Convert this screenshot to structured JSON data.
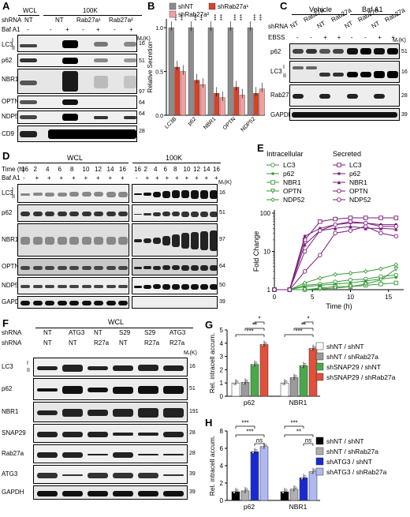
{
  "panels": {
    "A": "A",
    "B": "B",
    "C": "C",
    "D": "D",
    "E": "E",
    "F": "F",
    "G": "G",
    "H": "H"
  },
  "common": {
    "mk": "Mᵣ(K)",
    "I": "I",
    "II": "II",
    "minus": "-",
    "plus": "+"
  },
  "A": {
    "shrna_label": "shRNA",
    "bafa1_label": "Baf A1",
    "wcl": "WCL",
    "k100": "100K",
    "nt": "NT",
    "nt2": "NT",
    "rab27a1": "Rab27a¹",
    "rab27a2": "Rab27a²",
    "proteins": [
      "LC3",
      "p62",
      "NBR1",
      "OPTN",
      "NDP52",
      "CD9"
    ],
    "markers": [
      "16",
      "51",
      "97",
      "64",
      "64",
      "28"
    ],
    "bafa1": [
      "-",
      "-",
      "+",
      "-",
      "+",
      "-",
      "+"
    ]
  },
  "B": {
    "ylabel": "Relative Secretion",
    "yticks": [
      "0.0",
      "0.5",
      "1.0"
    ],
    "sig": "***",
    "legend": [
      "shNT",
      "shRab27a¹",
      "shRab27a²"
    ],
    "colors": [
      "#8c8c8c",
      "#d8402a",
      "#f0a0a0"
    ]
  },
  "C": {
    "vehicle": "Vehicle",
    "bafa1_title": "Baf A1",
    "shrna_label": "shRNA",
    "ebss_label": "EBSS",
    "shrna": [
      "NT",
      "Rab27a",
      "NT",
      "Rab27a",
      "NT",
      "Rab27a",
      "NT",
      "Rab27a"
    ],
    "ebss": [
      "-",
      "-",
      "+",
      "+",
      "-",
      "-",
      "+",
      "+"
    ],
    "proteins": [
      "p62",
      "LC3",
      "Rab27a",
      "GAPDH"
    ],
    "markers": [
      "51",
      "16",
      "28",
      "39"
    ]
  },
  "D": {
    "time_label": "Time (h)",
    "bafa1_label": "Baf A1",
    "wcl": "WCL",
    "k100": "100K",
    "times_wcl": [
      "16",
      "2",
      "4",
      "6",
      "8",
      "10",
      "12",
      "14",
      "16"
    ],
    "bafa1_wcl": [
      "-",
      "+",
      "+",
      "+",
      "+",
      "+",
      "+",
      "+",
      "+"
    ],
    "times_100k": [
      "16",
      "2",
      "4",
      "6",
      "8",
      "10",
      "12",
      "14",
      "16"
    ],
    "bafa1_100k": [
      "-",
      "+",
      "+",
      "+",
      "+",
      "+",
      "+",
      "+",
      "+"
    ],
    "proteins": [
      "LC3",
      "p62",
      "NBR1",
      "OPTN",
      "NDP52",
      "GAPDH"
    ],
    "markers": [
      "16",
      "51",
      "97",
      "64",
      "50",
      "39"
    ]
  },
  "chart_data": [
    {
      "panel": "B",
      "type": "bar",
      "categories": [
        "LC3B",
        "p62",
        "NBR1",
        "OPTN",
        "NDP52"
      ],
      "ylabel": "Relative Secretion",
      "ylim": [
        0,
        1.1
      ],
      "series": [
        {
          "name": "shNT",
          "values": [
            1.0,
            1.0,
            1.0,
            1.0,
            1.0
          ],
          "color": "#8c8c8c"
        },
        {
          "name": "shRab27a¹",
          "values": [
            0.55,
            0.4,
            0.25,
            0.32,
            0.25
          ],
          "color": "#d8402a"
        },
        {
          "name": "shRab27a²",
          "values": [
            0.5,
            0.35,
            0.2,
            0.23,
            0.3
          ],
          "color": "#f0a0a0"
        }
      ],
      "annotations": [
        "***",
        "***",
        "***",
        "***",
        "***",
        "***",
        "***",
        "***",
        "***",
        "***"
      ]
    },
    {
      "panel": "E",
      "type": "line",
      "xlabel": "Time (h)",
      "ylabel": "Fold Change",
      "xlim": [
        0,
        17
      ],
      "ylim": [
        1,
        100
      ],
      "yscale": "log",
      "xticks": [
        0,
        5,
        10,
        15
      ],
      "yticks": [
        "1",
        "10",
        "100"
      ],
      "x": [
        2,
        4,
        6,
        8,
        10,
        12,
        14,
        16
      ],
      "legend_title_left": "Intracellular",
      "legend_title_right": "Secreted",
      "series": [
        {
          "name": "LC3",
          "group": "Intracellular",
          "color": "#3a9a3a",
          "marker": "circle",
          "values": [
            1,
            1.3,
            1.4,
            1.6,
            1.8,
            1.9,
            2.2,
            2.4
          ]
        },
        {
          "name": "p62",
          "group": "Intracellular",
          "color": "#3a9a3a",
          "marker": "dot",
          "values": [
            1,
            1.2,
            1.3,
            1.4,
            1.5,
            1.7,
            1.9,
            2.1
          ]
        },
        {
          "name": "NBR1",
          "group": "Intracellular",
          "color": "#3a9a3a",
          "marker": "square",
          "values": [
            1,
            1.0,
            1.1,
            1.2,
            1.2,
            1.3,
            1.4,
            1.5
          ]
        },
        {
          "name": "OPTN",
          "group": "Intracellular",
          "color": "#3a9a3a",
          "marker": "triangle-down",
          "values": [
            1,
            1.0,
            1.05,
            1.1,
            1.2,
            1.4,
            1.8,
            3.5
          ]
        },
        {
          "name": "NDP52",
          "group": "Intracellular",
          "color": "#3a9a3a",
          "marker": "diamond",
          "values": [
            1,
            1.5,
            2.0,
            2.5,
            2.7,
            3.0,
            3.5,
            4.5
          ]
        },
        {
          "name": "LC3",
          "group": "Secreted",
          "color": "#7a1a7a",
          "marker": "square",
          "values": [
            1,
            20,
            60,
            70,
            75,
            75,
            75,
            75
          ]
        },
        {
          "name": "p62",
          "group": "Secreted",
          "color": "#7a1a7a",
          "marker": "dot",
          "values": [
            1,
            25,
            40,
            50,
            55,
            55,
            50,
            50
          ]
        },
        {
          "name": "NBR1",
          "group": "Secreted",
          "color": "#7a1a7a",
          "marker": "triangle",
          "values": [
            1,
            15,
            35,
            40,
            45,
            40,
            40,
            38
          ]
        },
        {
          "name": "OPTN",
          "group": "Secreted",
          "color": "#7a1a7a",
          "marker": "circle",
          "values": [
            1,
            3,
            8,
            30,
            35,
            45,
            30,
            25
          ]
        },
        {
          "name": "NDP52",
          "group": "Secreted",
          "color": "#7a1a7a",
          "marker": "circle",
          "values": [
            1,
            10,
            35,
            50,
            60,
            55,
            45,
            45
          ]
        }
      ]
    },
    {
      "panel": "G",
      "type": "bar",
      "categories": [
        "p62",
        "NBR1"
      ],
      "ylabel": "Rel. intracell accum.",
      "ylim": [
        0,
        5
      ],
      "yticks": [
        "0",
        "1",
        "2",
        "3",
        "4",
        "5"
      ],
      "series": [
        {
          "name": "shNT / shNT",
          "values": [
            1.0,
            1.0
          ],
          "color": "#ffffff"
        },
        {
          "name": "shNT / shRab27a",
          "values": [
            1.05,
            1.4
          ],
          "color": "#9a9a9a"
        },
        {
          "name": "shSNAP29 / shNT",
          "values": [
            2.4,
            2.3
          ],
          "color": "#4aa84a"
        },
        {
          "name": "shSNAP29 / shRab27a",
          "values": [
            3.9,
            3.6
          ],
          "color": "#e0503a"
        }
      ],
      "annotations": [
        "***",
        "**",
        "*",
        "***",
        "**",
        "*"
      ]
    },
    {
      "panel": "H",
      "type": "bar",
      "categories": [
        "p62",
        "NBR1"
      ],
      "ylabel": "Rel. intracell accum.",
      "ylim": [
        0,
        8
      ],
      "yticks": [
        "0",
        "2",
        "4",
        "6",
        "8"
      ],
      "series": [
        {
          "name": "shNT / shNT",
          "values": [
            1.0,
            1.0
          ],
          "color": "#000000"
        },
        {
          "name": "shNT / shRab27a",
          "values": [
            1.1,
            1.3
          ],
          "color": "#b0b0b0"
        },
        {
          "name": "shATG3 / shNT",
          "values": [
            5.6,
            2.6
          ],
          "color": "#1a2ad0"
        },
        {
          "name": "shATG3 / shRab27a",
          "values": [
            6.2,
            3.3
          ],
          "color": "#b0b8f0"
        }
      ],
      "annotations": [
        "***",
        "***",
        "ns",
        "***",
        "**",
        "ns"
      ]
    }
  ],
  "F": {
    "wcl": "WCL",
    "shrna_label": "shRNA",
    "row1": [
      "NT",
      "ATG3",
      "NT",
      "S29",
      "S29",
      "ATG3"
    ],
    "row2": [
      "NT",
      "NT",
      "R27a",
      "NT",
      "R27a",
      "R27a"
    ],
    "proteins": [
      "LC3",
      "p62",
      "NBR1",
      "SNAP29",
      "Rab27a",
      "ATG3",
      "GAPDH"
    ],
    "markers": [
      "16",
      "51",
      "191",
      "28",
      "28",
      "39",
      "39"
    ],
    "m191_extra": "191"
  }
}
